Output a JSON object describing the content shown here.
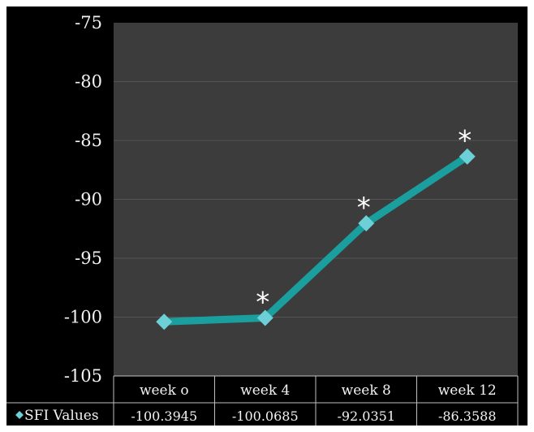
{
  "chart_data": {
    "type": "line",
    "categories": [
      "week o",
      "week 4",
      "week 8",
      "week 12"
    ],
    "series": [
      {
        "name": "SFI Values",
        "values": [
          -100.3945,
          -100.0685,
          -92.0351,
          -86.3588
        ],
        "value_labels": [
          "-100.3945",
          "-100.0685",
          "-92.0351",
          "-86.3588"
        ],
        "color": "#1a9e9e",
        "marker_color": "#6cd0d6",
        "marker": "diamond"
      }
    ],
    "y_tick_labels": [
      "-75",
      "-80",
      "-85",
      "-90",
      "-95",
      "-100",
      "-105"
    ],
    "ylim": [
      -105,
      -75
    ],
    "significance_marks": [
      {
        "category": "week 4",
        "symbol": "*"
      },
      {
        "category": "week 8",
        "symbol": "*"
      },
      {
        "category": "week 12",
        "symbol": "*"
      }
    ],
    "title": "",
    "xlabel": "",
    "ylabel": "",
    "grid": "horizontal",
    "legend": "data-table",
    "colors": {
      "background": "#000000",
      "plot_area": "#3c3c3c",
      "gridline": "#555555",
      "table_border": "#bfbfbf",
      "text": "#f2f2f2"
    }
  }
}
